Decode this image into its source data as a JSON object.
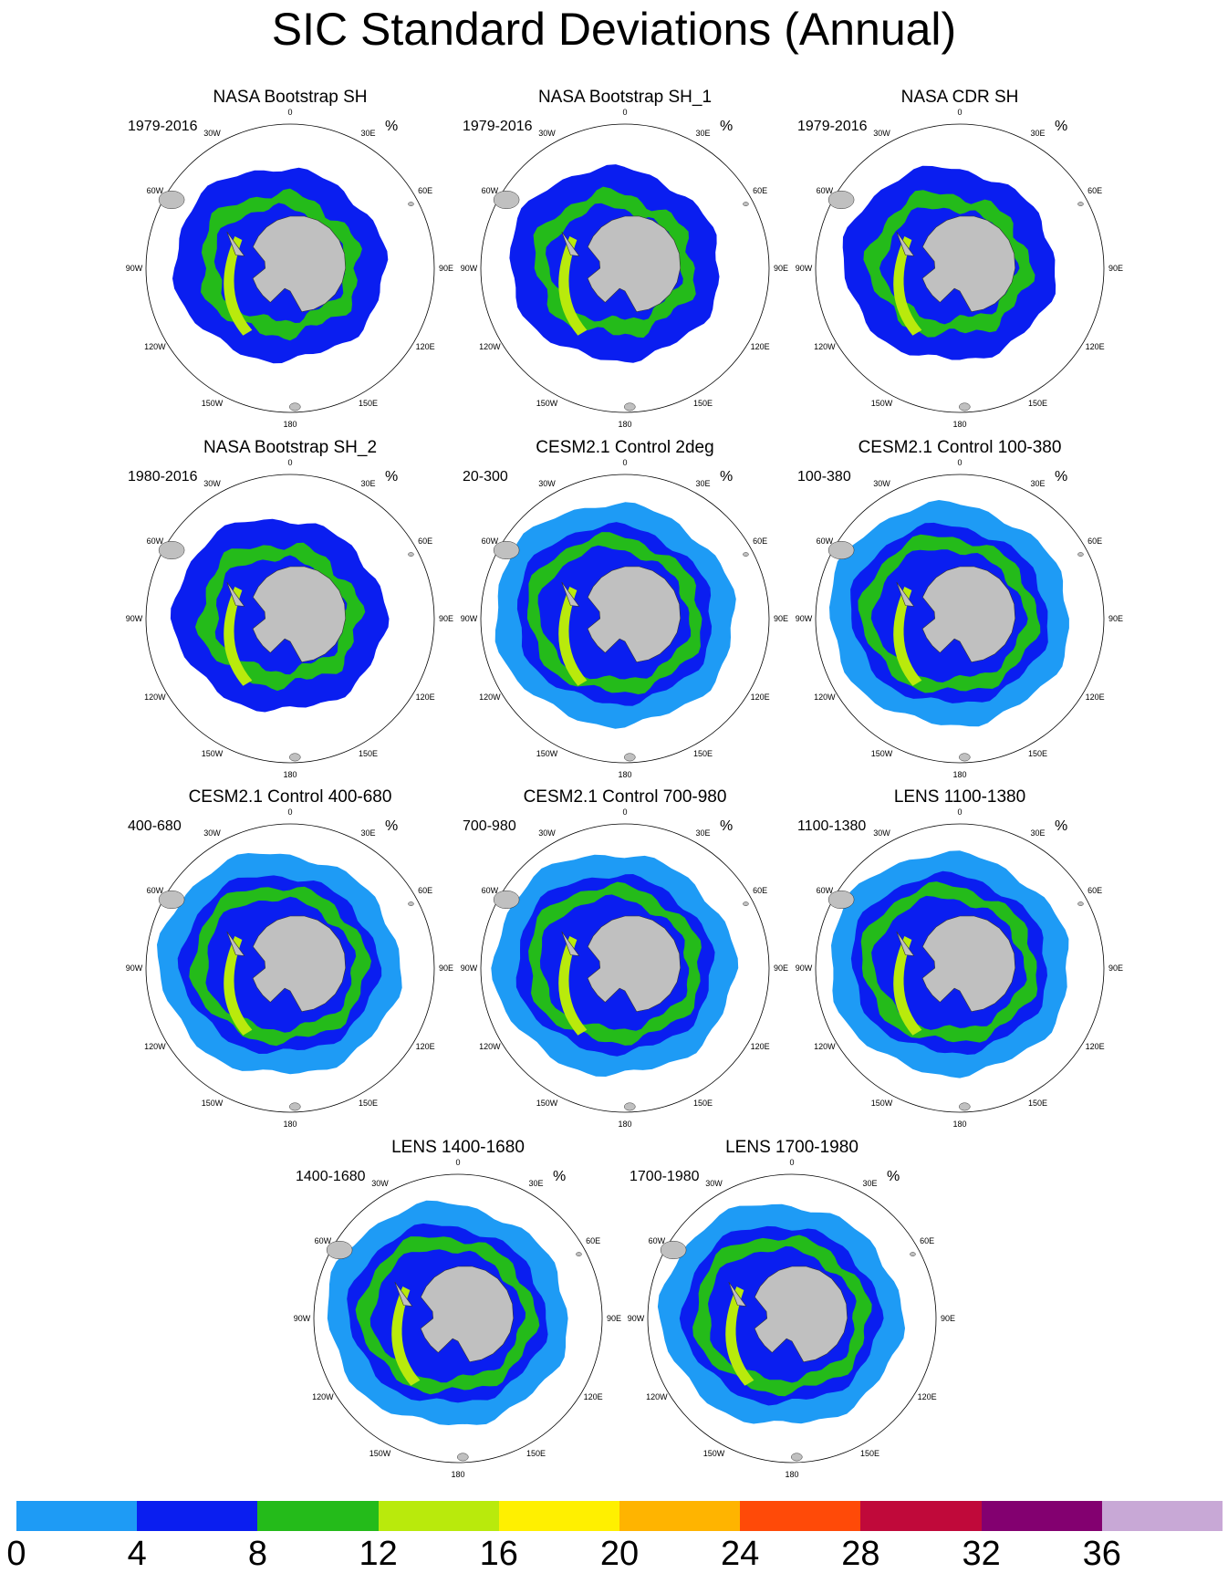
{
  "title": "SIC Standard Deviations (Annual)",
  "unit_label": "%",
  "longitude_labels": [
    "0",
    "30E",
    "60E",
    "90E",
    "120E",
    "150E",
    "180",
    "150W",
    "120W",
    "90W",
    "60W",
    "30W"
  ],
  "panels": [
    {
      "title": "NASA Bootstrap SH",
      "period": "1979-2016"
    },
    {
      "title": "NASA Bootstrap SH_1",
      "period": "1979-2016"
    },
    {
      "title": "NASA CDR SH",
      "period": "1979-2016"
    },
    {
      "title": "NASA Bootstrap SH_2",
      "period": "1980-2016"
    },
    {
      "title": "CESM2.1 Control 2deg",
      "period": "20-300"
    },
    {
      "title": "CESM2.1 Control 100-380",
      "period": "100-380"
    },
    {
      "title": "CESM2.1 Control 400-680",
      "period": "400-680"
    },
    {
      "title": "CESM2.1 Control 700-980",
      "period": "700-980"
    },
    {
      "title": "LENS 1100-1380",
      "period": "1100-1380"
    },
    {
      "title": "LENS 1400-1680",
      "period": "1400-1680"
    },
    {
      "title": "LENS 1700-1980",
      "period": "1700-1980"
    }
  ],
  "colorbar": {
    "colors": [
      "#1e9bf5",
      "#0a1ef0",
      "#24bb1a",
      "#b9ea0c",
      "#fff000",
      "#ffb400",
      "#ff4a08",
      "#c0093a",
      "#830070",
      "#c8a8d6"
    ],
    "tick_labels": [
      "0",
      "4",
      "8",
      "12",
      "16",
      "20",
      "24",
      "28",
      "32",
      "36"
    ]
  },
  "map_colors": {
    "land": "#c0c0c0",
    "ocean": "#ffffff",
    "outline": "#000000"
  }
}
